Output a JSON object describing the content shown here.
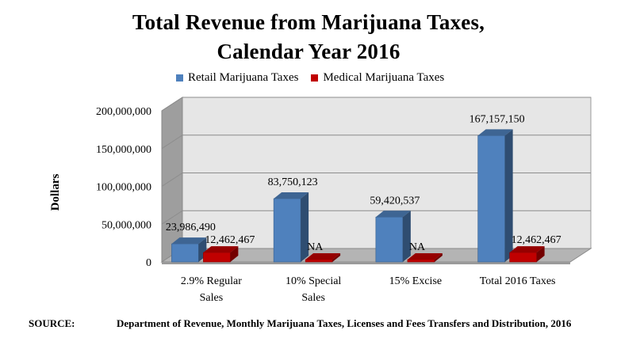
{
  "chart_data": {
    "type": "bar",
    "title_lines": [
      "Total Revenue from Marijuana Taxes,",
      "Calendar Year 2016"
    ],
    "ylabel": "Dollars",
    "xlabel": "",
    "ylim": [
      0,
      200000000
    ],
    "yticks": [
      "0",
      "50,000,000",
      "100,000,000",
      "150,000,000",
      "200,000,000"
    ],
    "categories": [
      [
        "2.9% Regular",
        "Sales"
      ],
      [
        "10% Special",
        "Sales"
      ],
      [
        "15% Excise"
      ],
      [
        "Total 2016 Taxes"
      ]
    ],
    "series": [
      {
        "name": "Retail Marijuana Taxes",
        "color": "#4f81bd",
        "values": [
          23986490,
          83750123,
          59420537,
          167157150
        ],
        "labels": [
          "23,986,490",
          "83,750,123",
          "59,420,537",
          "167,157,150"
        ]
      },
      {
        "name": "Medical Marijuana Taxes",
        "color": "#c00000",
        "values": [
          12462467,
          0,
          0,
          12462467
        ],
        "labels": [
          "12,462,467",
          "NA",
          "NA",
          "12,462,467"
        ]
      }
    ],
    "legend_position": "top",
    "grid": true
  },
  "source": {
    "label": "SOURCE:",
    "text": "Department of Revenue, Monthly Marijuana Taxes, Licenses and Fees Transfers and Distribution, 2016"
  }
}
